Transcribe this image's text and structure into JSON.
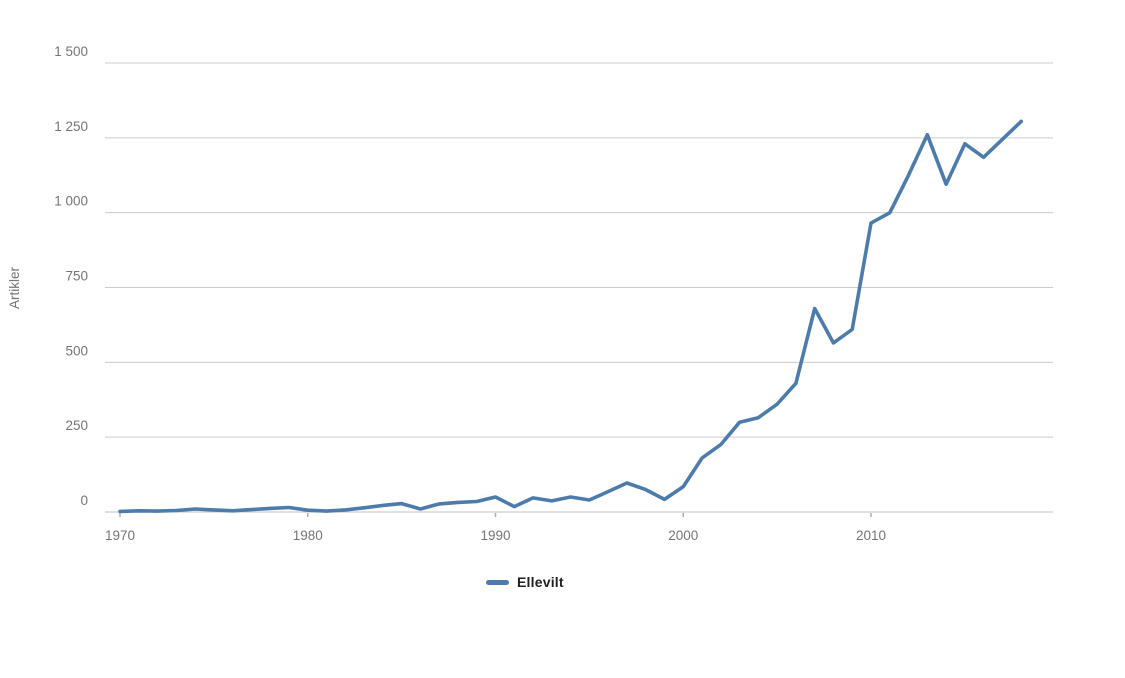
{
  "chart": {
    "y_axis": {
      "title": "Artikler",
      "tick_labels": [
        "0",
        "250",
        "500",
        "750",
        "1 000",
        "1 250",
        "1 500"
      ],
      "tick_values": [
        0,
        250,
        500,
        750,
        1000,
        1250,
        1500
      ]
    },
    "x_axis": {
      "tick_labels": [
        "1970",
        "1980",
        "1990",
        "2000",
        "2010"
      ],
      "tick_values": [
        1970,
        1980,
        1990,
        2000,
        2010
      ]
    },
    "legend": {
      "label": "Ellevilt"
    },
    "colors": {
      "series": "#4d7cab",
      "gridline": "#cccccc",
      "baseline": "#c2c2c2",
      "tick_mark": "#adadad",
      "axis_label": "#757575",
      "legend_text": "#212121",
      "background": "#ffffff"
    }
  },
  "chart_data": {
    "type": "line",
    "title": "",
    "xlabel": "",
    "ylabel": "Artikler",
    "legend_position": "bottom",
    "grid": true,
    "xlim": [
      1970,
      2018
    ],
    "ylim": [
      0,
      1500
    ],
    "x": [
      1970,
      1971,
      1972,
      1973,
      1974,
      1975,
      1976,
      1977,
      1978,
      1979,
      1980,
      1981,
      1982,
      1983,
      1984,
      1985,
      1986,
      1987,
      1988,
      1989,
      1990,
      1991,
      1992,
      1993,
      1994,
      1995,
      1996,
      1997,
      1998,
      1999,
      2000,
      2001,
      2002,
      2003,
      2004,
      2005,
      2006,
      2007,
      2008,
      2009,
      2010,
      2011,
      2012,
      2013,
      2014,
      2015,
      2016,
      2017,
      2018
    ],
    "series": [
      {
        "name": "Ellevilt",
        "color": "#4d7cab",
        "values": [
          2,
          4,
          3,
          5,
          10,
          7,
          4,
          8,
          12,
          15,
          6,
          3,
          7,
          14,
          22,
          28,
          10,
          27,
          32,
          35,
          50,
          18,
          47,
          37,
          50,
          40,
          68,
          97,
          75,
          42,
          85,
          180,
          225,
          300,
          315,
          360,
          430,
          680,
          565,
          610,
          965,
          1000,
          1125,
          1260,
          1095,
          1230,
          1185,
          1245,
          1305
        ]
      }
    ]
  }
}
